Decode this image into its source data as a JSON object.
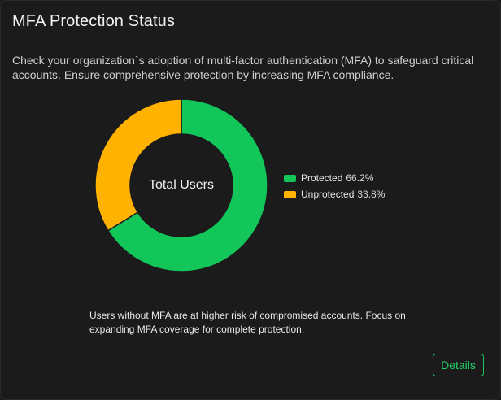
{
  "card": {
    "title": "MFA Protection Status",
    "description": "Check your organization`s adoption of multi-factor authentication (MFA) to safeguard critical accounts. Ensure comprehensive protection by increasing MFA compliance.",
    "note": "Users without MFA are at higher risk of compromised accounts. Focus on expanding MFA coverage for complete protection.",
    "details_label": "Details"
  },
  "chart_data": {
    "type": "pie",
    "center_label": "Total Users",
    "legend_position": "right",
    "series": [
      {
        "name": "Protected",
        "value": 66.2,
        "label": "66.2%",
        "color": "#12c65a"
      },
      {
        "name": "Unprotected",
        "value": 33.8,
        "label": "33.8%",
        "color": "#ffb200"
      }
    ]
  },
  "colors": {
    "background": "#1b1b1b",
    "accent": "#16c45c"
  }
}
